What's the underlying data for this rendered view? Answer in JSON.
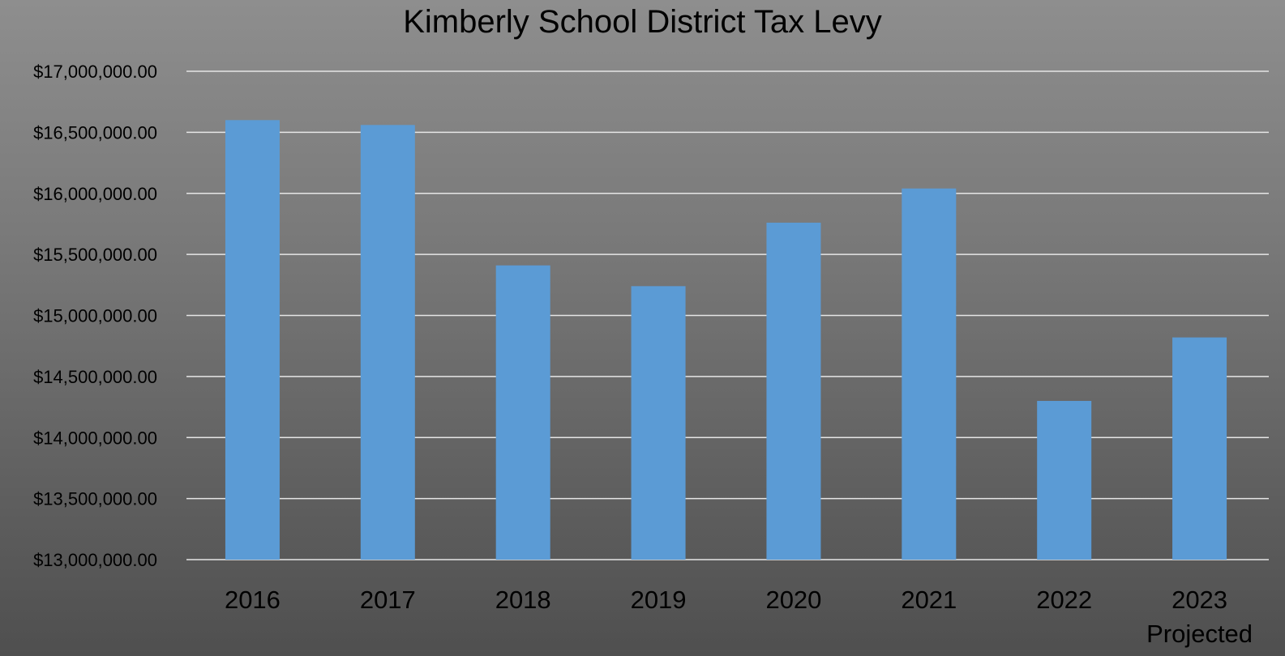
{
  "chart_data": {
    "type": "bar",
    "title": "Kimberly School District Tax Levy",
    "xlabel": "",
    "ylabel": "",
    "categories": [
      [
        "2016"
      ],
      [
        "2017"
      ],
      [
        "2018"
      ],
      [
        "2019"
      ],
      [
        "2020"
      ],
      [
        "2021"
      ],
      [
        "2022"
      ],
      [
        "2023",
        "Projected"
      ]
    ],
    "values": [
      16600000,
      16560000,
      15410000,
      15240000,
      15760000,
      16040000,
      14300000,
      14820000
    ],
    "ylim": [
      13000000,
      17000000
    ],
    "yticks": [
      "$13,000,000.00",
      "$13,500,000.00",
      "$14,000,000.00",
      "$14,500,000.00",
      "$15,000,000.00",
      "$15,500,000.00",
      "$16,000,000.00",
      "$16,500,000.00",
      "$17,000,000.00"
    ],
    "ytick_values": [
      13000000,
      13500000,
      14000000,
      14500000,
      15000000,
      15500000,
      16000000,
      16500000,
      17000000
    ],
    "grid": true,
    "legend": "none",
    "bar_color": "#5b9bd5",
    "grid_color": "#e6e6e6"
  }
}
